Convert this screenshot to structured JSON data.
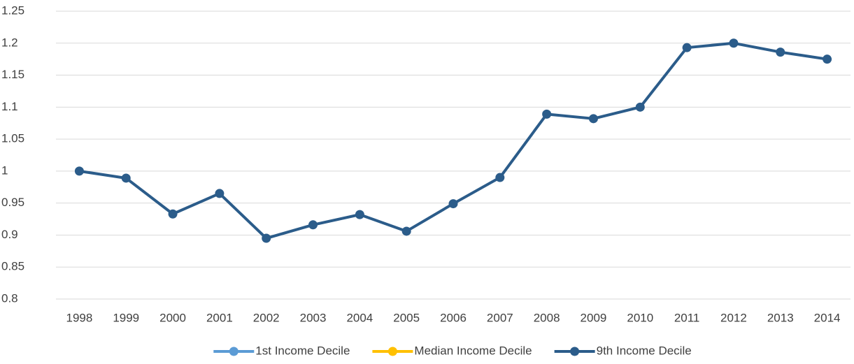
{
  "chart_data": {
    "type": "line",
    "categories": [
      "1998",
      "1999",
      "2000",
      "2001",
      "2002",
      "2003",
      "2004",
      "2005",
      "2006",
      "2007",
      "2008",
      "2009",
      "2010",
      "2011",
      "2012",
      "2013",
      "2014"
    ],
    "series": [
      {
        "name": "1st Income Decile",
        "color": "#5b9bd5",
        "values": [
          null,
          null,
          null,
          null,
          null,
          null,
          null,
          null,
          null,
          null,
          null,
          null,
          null,
          null,
          null,
          null,
          null
        ]
      },
      {
        "name": "Median Income Decile",
        "color": "#ffc000",
        "values": [
          null,
          null,
          null,
          null,
          null,
          null,
          null,
          null,
          null,
          null,
          null,
          null,
          null,
          null,
          null,
          null,
          null
        ]
      },
      {
        "name": "9th Income Decile",
        "color": "#2b5c8a",
        "values": [
          1.0,
          0.989,
          0.933,
          0.965,
          0.895,
          0.916,
          0.932,
          0.906,
          0.949,
          0.99,
          1.089,
          1.082,
          1.1,
          1.193,
          1.2,
          1.186,
          1.175
        ]
      }
    ],
    "ylim": [
      0.8,
      1.25
    ],
    "yticks": [
      0.8,
      0.85,
      0.9,
      0.95,
      1,
      1.05,
      1.1,
      1.15,
      1.2,
      1.25
    ],
    "grid": true,
    "legend": "bottom"
  }
}
